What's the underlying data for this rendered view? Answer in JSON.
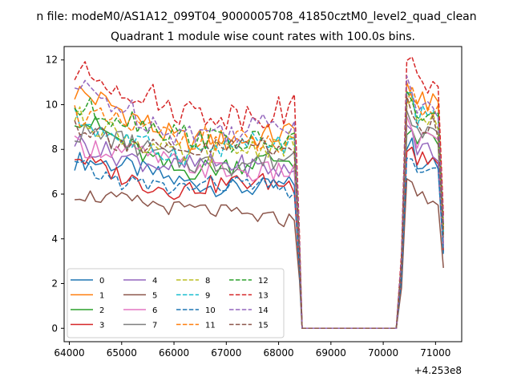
{
  "chart_data": {
    "type": "line",
    "suptitle": "n file: modeM0/AS1A12_099T04_9000005708_41850cztM0_level2_quad_clean",
    "title": "Quadrant 1 module wise count rates with 100.0s bins.",
    "xlabel": "",
    "ylabel": "",
    "offset_label": "+4.253e8",
    "xlim": [
      63900,
      71500
    ],
    "ylim": [
      -0.6,
      12.6
    ],
    "xticks": [
      64000,
      65000,
      66000,
      67000,
      68000,
      69000,
      70000,
      71000
    ],
    "xtick_labels": [
      "64000",
      "65000",
      "66000",
      "67000",
      "68000",
      "69000",
      "70000",
      "71000"
    ],
    "yticks": [
      0,
      2,
      4,
      6,
      8,
      10,
      12
    ],
    "ytick_labels": [
      "0",
      "2",
      "4",
      "6",
      "8",
      "10",
      "12"
    ],
    "x_start": 64100,
    "x_step": 100,
    "seg1_end": 68300,
    "fall_end": 68400,
    "zero_start": 68450,
    "zero_end": 70250,
    "rise_mid": 70350,
    "seg2_start": 70450,
    "x_end": 71150,
    "legend_position": "lower-left",
    "series": [
      {
        "name": "0",
        "color": "#1f77b4",
        "dash": "solid",
        "level1": 6.5,
        "level2": 7.6,
        "start_boost": 1.0
      },
      {
        "name": "1",
        "color": "#ff7f0e",
        "dash": "solid",
        "level1": 8.6,
        "level2": 10.3,
        "start_boost": 1.8
      },
      {
        "name": "2",
        "color": "#2ca02c",
        "dash": "solid",
        "level1": 7.3,
        "level2": 8.5,
        "start_boost": 2.0
      },
      {
        "name": "3",
        "color": "#d62728",
        "dash": "solid",
        "level1": 6.3,
        "level2": 7.7,
        "start_boost": 1.4
      },
      {
        "name": "4",
        "color": "#9467bd",
        "dash": "solid",
        "level1": 7.1,
        "level2": 8.2,
        "start_boost": 1.5
      },
      {
        "name": "5",
        "color": "#8c564b",
        "dash": "solid",
        "level1": 5.1,
        "level2": 6.0,
        "start_boost": 1.2
      },
      {
        "name": "6",
        "color": "#e377c2",
        "dash": "solid",
        "level1": 7.2,
        "level2": 8.6,
        "start_boost": 1.0
      },
      {
        "name": "7",
        "color": "#7f7f7f",
        "dash": "solid",
        "level1": 7.6,
        "level2": 9.0,
        "start_boost": 1.0
      },
      {
        "name": "8",
        "color": "#bcbd22",
        "dash": "dashed",
        "level1": 8.0,
        "level2": 9.6,
        "start_boost": 1.2
      },
      {
        "name": "9",
        "color": "#17becf",
        "dash": "dashed",
        "level1": 8.0,
        "level2": 9.6,
        "start_boost": 1.3
      },
      {
        "name": "10",
        "color": "#1f77b4",
        "dash": "dashed",
        "level1": 6.2,
        "level2": 7.4,
        "start_boost": 1.2
      },
      {
        "name": "11",
        "color": "#ff7f0e",
        "dash": "dashed",
        "level1": 8.3,
        "level2": 9.8,
        "start_boost": 1.6
      },
      {
        "name": "12",
        "color": "#2ca02c",
        "dash": "dashed",
        "level1": 8.5,
        "level2": 10.0,
        "start_boost": 1.5
      },
      {
        "name": "13",
        "color": "#d62728",
        "dash": "dashed",
        "level1": 9.8,
        "level2": 11.2,
        "start_boost": 1.5
      },
      {
        "name": "14",
        "color": "#9467bd",
        "dash": "dashed",
        "level1": 9.0,
        "level2": 10.3,
        "start_boost": 1.5
      },
      {
        "name": "15",
        "color": "#8c564b",
        "dash": "dashed",
        "level1": 8.0,
        "level2": 9.3,
        "start_boost": 1.0
      }
    ]
  }
}
